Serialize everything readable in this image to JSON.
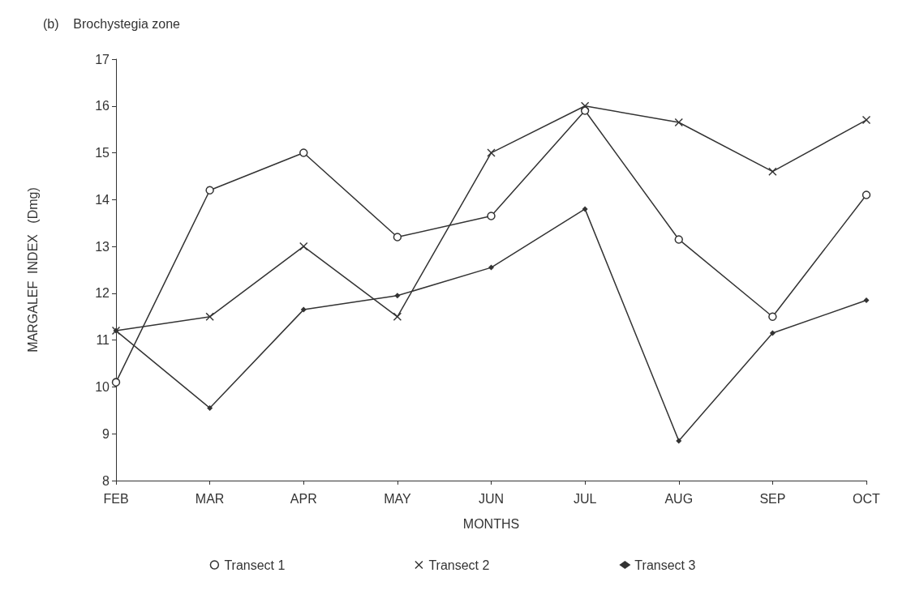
{
  "chart_data": {
    "type": "line",
    "title": "(b)    Brochystegia zone",
    "xlabel": "MONTHS",
    "ylabel": "MARGALEF  INDEX   (Dmg)",
    "categories": [
      "FEB",
      "MAR",
      "APR",
      "MAY",
      "JUN",
      "JUL",
      "AUG",
      "SEP",
      "OCT"
    ],
    "series": [
      {
        "name": "Transect 1",
        "color": "#333333",
        "marker": "circle",
        "values": [
          10.1,
          14.2,
          15.0,
          13.2,
          13.65,
          15.9,
          13.15,
          11.5,
          14.1
        ]
      },
      {
        "name": "Transect 2",
        "color": "#333333",
        "marker": "cross",
        "values": [
          11.2,
          11.5,
          13.0,
          11.5,
          15.0,
          16.0,
          15.65,
          14.6,
          15.7
        ]
      },
      {
        "name": "Transect 3",
        "color": "#333333",
        "marker": "diamond",
        "values": [
          11.2,
          9.55,
          11.65,
          11.95,
          12.55,
          13.8,
          8.85,
          11.15,
          11.85
        ]
      }
    ],
    "ylim": [
      8,
      17
    ],
    "yticks": [
      8,
      9,
      10,
      11,
      12,
      13,
      14,
      15,
      16,
      17
    ],
    "grid": false,
    "legend": "bottom",
    "line_style": "solid"
  }
}
